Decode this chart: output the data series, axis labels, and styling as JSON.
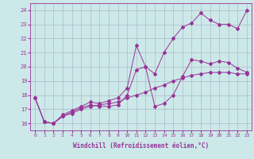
{
  "xlabel": "Windchill (Refroidissement éolien,°C)",
  "bg_color": "#cce8e8",
  "grid_color": "#aabbcc",
  "line_color": "#993399",
  "xlim": [
    -0.5,
    23.5
  ],
  "ylim": [
    15.5,
    24.5
  ],
  "yticks": [
    16,
    17,
    18,
    19,
    20,
    21,
    22,
    23,
    24
  ],
  "xticks": [
    0,
    1,
    2,
    3,
    4,
    5,
    6,
    7,
    8,
    9,
    10,
    11,
    12,
    13,
    14,
    15,
    16,
    17,
    18,
    19,
    20,
    21,
    22,
    23
  ],
  "series": [
    [
      0,
      17.8,
      1,
      16.1,
      2,
      16.0,
      3,
      16.5,
      4,
      16.7,
      5,
      17.0,
      6,
      17.2,
      7,
      17.3,
      8,
      17.4,
      9,
      17.5,
      10,
      17.8,
      11,
      18.0,
      12,
      18.2,
      13,
      18.5,
      14,
      18.7,
      15,
      19.0,
      16,
      19.2,
      17,
      19.4,
      18,
      19.5,
      19,
      19.6,
      20,
      19.6,
      21,
      19.6,
      22,
      19.5,
      23,
      19.5
    ],
    [
      0,
      17.8,
      1,
      16.1,
      2,
      16.0,
      3,
      16.5,
      4,
      16.8,
      5,
      17.1,
      6,
      17.3,
      7,
      17.2,
      8,
      17.2,
      9,
      17.3,
      10,
      18.0,
      11,
      19.8,
      12,
      20.0,
      13,
      17.2,
      14,
      17.4,
      15,
      18.0,
      16,
      19.3,
      17,
      20.5,
      18,
      20.4,
      19,
      20.2,
      20,
      20.4,
      21,
      20.3,
      22,
      19.9,
      23,
      19.6
    ],
    [
      0,
      17.8,
      1,
      16.1,
      2,
      16.0,
      3,
      16.6,
      4,
      16.9,
      5,
      17.2,
      6,
      17.5,
      7,
      17.4,
      8,
      17.6,
      9,
      17.8,
      10,
      18.5,
      11,
      21.5,
      12,
      20.0,
      13,
      19.5,
      14,
      21.0,
      15,
      22.0,
      16,
      22.8,
      17,
      23.1,
      18,
      23.8,
      19,
      23.3,
      20,
      23.0,
      21,
      23.0,
      22,
      22.7,
      23,
      24.0
    ]
  ]
}
